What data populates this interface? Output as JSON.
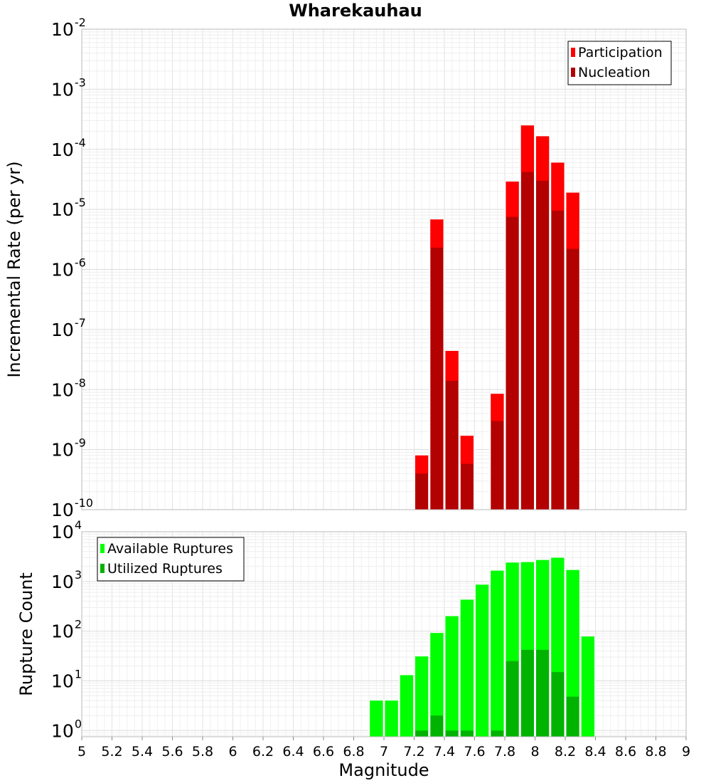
{
  "chart_data": [
    {
      "type": "bar",
      "title": "Wharekauhau",
      "xlabel": "",
      "ylabel": "Incremental Rate (per yr)",
      "yscale": "log",
      "xlim": [
        5,
        9
      ],
      "ylim": [
        1e-10,
        0.01
      ],
      "y_ticks": [
        {
          "base": "10",
          "exp": "-10",
          "value": 1e-10
        },
        {
          "base": "10",
          "exp": "-9",
          "value": 1e-09
        },
        {
          "base": "10",
          "exp": "-8",
          "value": 1e-08
        },
        {
          "base": "10",
          "exp": "-7",
          "value": 1e-07
        },
        {
          "base": "10",
          "exp": "-6",
          "value": 1e-06
        },
        {
          "base": "10",
          "exp": "-5",
          "value": 1e-05
        },
        {
          "base": "10",
          "exp": "-4",
          "value": 0.0001
        },
        {
          "base": "10",
          "exp": "-3",
          "value": 0.001
        },
        {
          "base": "10",
          "exp": "-2",
          "value": 0.01
        }
      ],
      "grid": true,
      "legend": {
        "placement": "top-right"
      },
      "series": [
        {
          "name": "Participation",
          "color": "#ff0000",
          "x": [
            7.25,
            7.35,
            7.45,
            7.55,
            7.75,
            7.85,
            7.95,
            8.05,
            8.15,
            8.25
          ],
          "values": [
            8e-10,
            6.8e-06,
            4.4e-08,
            1.7e-09,
            8.5e-09,
            2.9e-05,
            0.00025,
            0.000165,
            6e-05,
            1.9e-05
          ]
        },
        {
          "name": "Nucleation",
          "color": "#b30000",
          "x": [
            7.25,
            7.35,
            7.45,
            7.55,
            7.75,
            7.85,
            7.95,
            8.05,
            8.15,
            8.25
          ],
          "values": [
            4e-10,
            2.3e-06,
            1.4e-08,
            5.8e-10,
            3e-09,
            7.5e-06,
            4.2e-05,
            3e-05,
            9.5e-06,
            2.2e-06
          ]
        }
      ]
    },
    {
      "type": "bar",
      "title": "",
      "xlabel": "Magnitude",
      "ylabel": "Rupture Count",
      "yscale": "log",
      "xlim": [
        5,
        9
      ],
      "ylim": [
        0.75,
        10000
      ],
      "x_ticks": [
        "5",
        "5.2",
        "5.4",
        "5.6",
        "5.8",
        "6",
        "6.2",
        "6.4",
        "6.6",
        "6.8",
        "7",
        "7.2",
        "7.4",
        "7.6",
        "7.8",
        "8",
        "8.2",
        "8.4",
        "8.6",
        "8.8",
        "9"
      ],
      "y_ticks": [
        {
          "base": "10",
          "exp": "0",
          "value": 1
        },
        {
          "base": "10",
          "exp": "1",
          "value": 10
        },
        {
          "base": "10",
          "exp": "2",
          "value": 100
        },
        {
          "base": "10",
          "exp": "3",
          "value": 1000
        },
        {
          "base": "10",
          "exp": "4",
          "value": 10000
        }
      ],
      "grid": true,
      "legend": {
        "placement": "top-left"
      },
      "series": [
        {
          "name": "Available Ruptures",
          "color": "#00ff00",
          "x": [
            6.95,
            7.05,
            7.15,
            7.25,
            7.35,
            7.45,
            7.55,
            7.65,
            7.75,
            7.85,
            7.95,
            8.05,
            8.15,
            8.25,
            8.35
          ],
          "values": [
            4,
            4,
            13,
            31,
            92,
            200,
            430,
            860,
            1650,
            2400,
            2450,
            2700,
            3000,
            1700,
            78
          ]
        },
        {
          "name": "Utilized Ruptures",
          "color": "#00b300",
          "x": [
            7.25,
            7.35,
            7.45,
            7.55,
            7.75,
            7.85,
            7.95,
            8.05,
            8.15,
            8.25
          ],
          "values": [
            1,
            2,
            1,
            1,
            1,
            25,
            42,
            42,
            15,
            4.8
          ]
        }
      ]
    }
  ]
}
